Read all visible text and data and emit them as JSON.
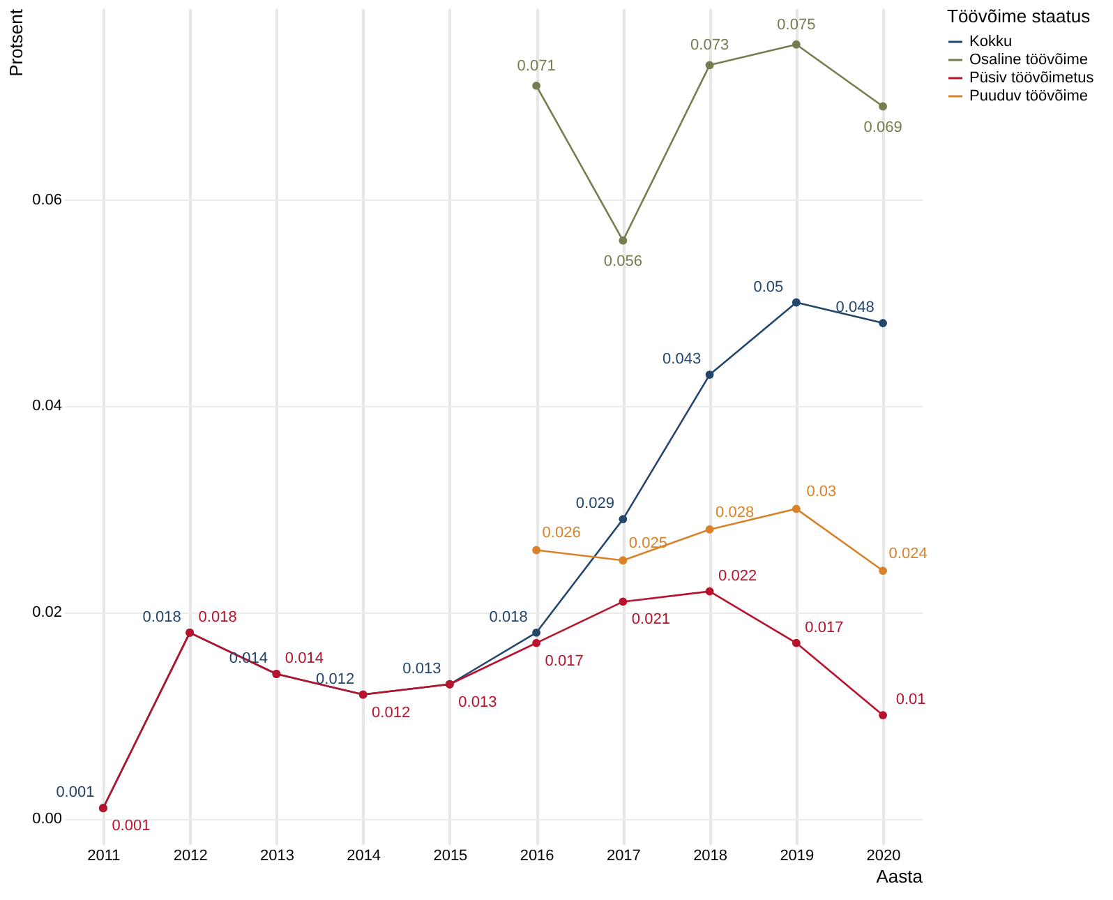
{
  "chart_data": {
    "type": "line",
    "xlabel": "Aasta",
    "ylabel": "Protsent",
    "legend_title": "Töövõime staatus",
    "xlim": [
      2010.55,
      2020.45
    ],
    "xticks": [
      2011,
      2012,
      2013,
      2014,
      2015,
      2016,
      2017,
      2018,
      2019,
      2020
    ],
    "ylim": [
      -0.0025,
      0.0785
    ],
    "yticks": [
      {
        "value": 0,
        "label": "0.00"
      },
      0.02,
      0.04,
      0.06
    ],
    "grid": true,
    "legend": "right",
    "marker": "circle",
    "line_style": "solid",
    "data_labels": true,
    "series": [
      {
        "name": "Kokku",
        "color": "#24466b",
        "x": [
          2011,
          2012,
          2013,
          2014,
          2015,
          2016,
          2017,
          2018,
          2019,
          2020
        ],
        "values": [
          0.001,
          0.018,
          0.014,
          0.012,
          0.013,
          0.018,
          0.029,
          0.043,
          0.05,
          0.048
        ]
      },
      {
        "name": "Osaline töövõime",
        "color": "#767d4f",
        "x": [
          2016,
          2017,
          2018,
          2019,
          2020
        ],
        "values": [
          0.071,
          0.056,
          0.073,
          0.075,
          0.069
        ]
      },
      {
        "name": "Püsiv töövõimetus",
        "color": "#b8132d",
        "x": [
          2011,
          2012,
          2013,
          2014,
          2015,
          2016,
          2017,
          2018,
          2019,
          2020
        ],
        "values": [
          0.001,
          0.018,
          0.014,
          0.012,
          0.013,
          0.017,
          0.021,
          0.022,
          0.017,
          0.01
        ]
      },
      {
        "name": "Puuduv töövõime",
        "color": "#d8822a",
        "x": [
          2016,
          2017,
          2018,
          2019,
          2020
        ],
        "values": [
          0.026,
          0.025,
          0.028,
          0.03,
          0.024
        ]
      }
    ]
  }
}
